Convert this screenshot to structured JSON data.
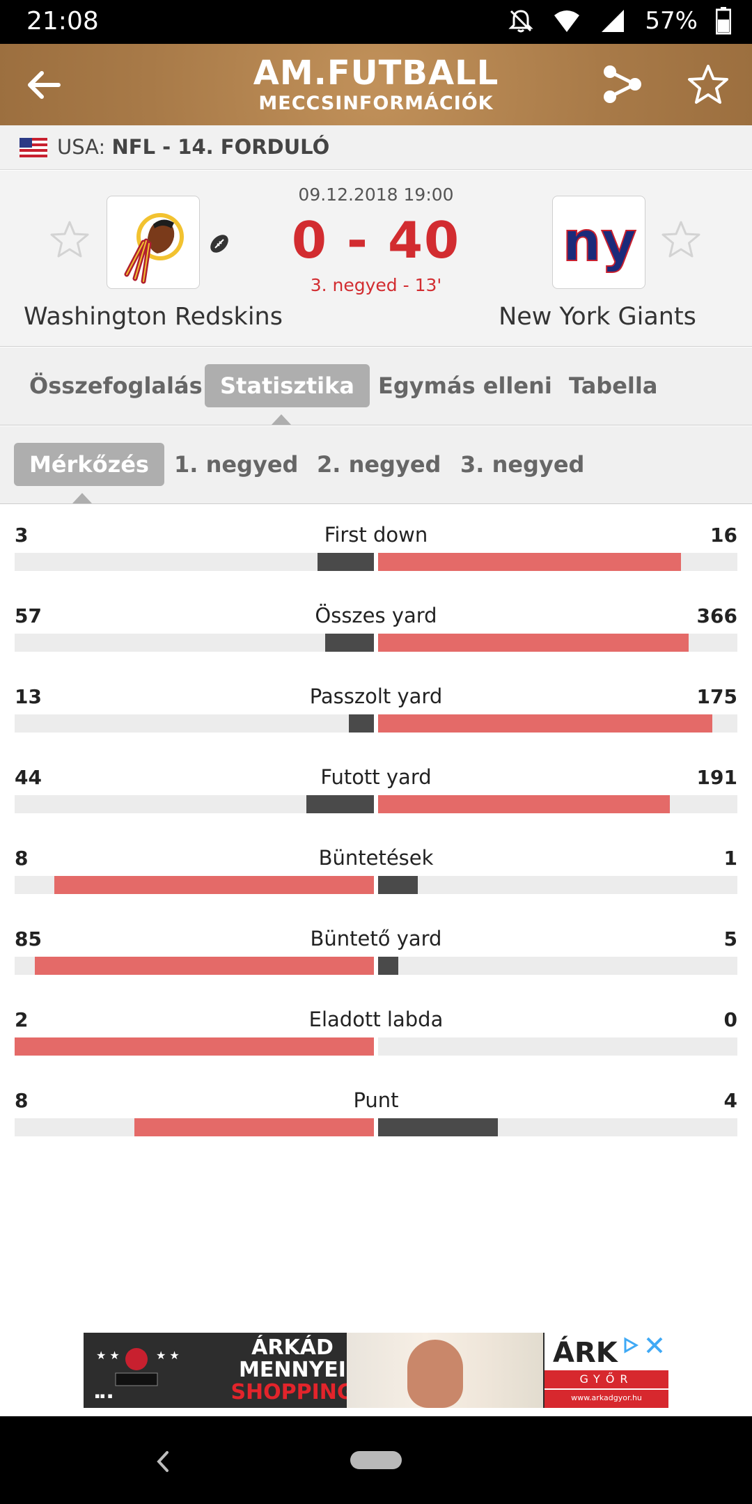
{
  "status_bar": {
    "time": "21:08",
    "battery": "57%",
    "icons": [
      "notifications-off-icon",
      "wifi-icon",
      "signal-icon",
      "battery-icon"
    ]
  },
  "header": {
    "title": "AM.FUTBALL",
    "subtitle": "MECCSINFORMÁCIÓK",
    "back_icon": "arrow-left-icon",
    "share_icon": "share-icon",
    "favorite_icon": "star-outline-icon"
  },
  "league": {
    "country": "USA:",
    "name": "NFL - 14. FORDULÓ"
  },
  "match": {
    "date": "09.12.2018 19:00",
    "score": "0 - 40",
    "status": "3. negyed - 13'",
    "home": {
      "name": "Washington Redskins"
    },
    "away": {
      "name": "New York Giants",
      "logo_text": "ny"
    },
    "colors": {
      "score": "#d22c30",
      "home_fill": "#e46a68",
      "away_fill": "#4a4a4a"
    }
  },
  "tabs": [
    {
      "label": "Összefoglalás",
      "active": false
    },
    {
      "label": "Statisztika",
      "active": true
    },
    {
      "label": "Egymás elleni",
      "active": false
    },
    {
      "label": "Tabella",
      "active": false
    }
  ],
  "subtabs": [
    {
      "label": "Mérkőzés",
      "active": true
    },
    {
      "label": "1. negyed",
      "active": false
    },
    {
      "label": "2. negyed",
      "active": false
    },
    {
      "label": "3. negyed",
      "active": false
    }
  ],
  "stats": [
    {
      "name": "First down",
      "home": "3",
      "away": "16"
    },
    {
      "name": "Összes yard",
      "home": "57",
      "away": "366"
    },
    {
      "name": "Passzolt yard",
      "home": "13",
      "away": "175"
    },
    {
      "name": "Futott yard",
      "home": "44",
      "away": "191"
    },
    {
      "name": "Büntetések",
      "home": "8",
      "away": "1"
    },
    {
      "name": "Büntető yard",
      "home": "85",
      "away": "5"
    },
    {
      "name": "Eladott labda",
      "home": "2",
      "away": "0"
    },
    {
      "name": "Punt",
      "home": "8",
      "away": "4"
    }
  ],
  "ad": {
    "line1": "ÁRKÁD",
    "line2": "MENNYEI",
    "line3": "SHOPPING",
    "brand": "ÁRK",
    "city": "GYŐR",
    "url": "www.arkadgyor.hu"
  }
}
